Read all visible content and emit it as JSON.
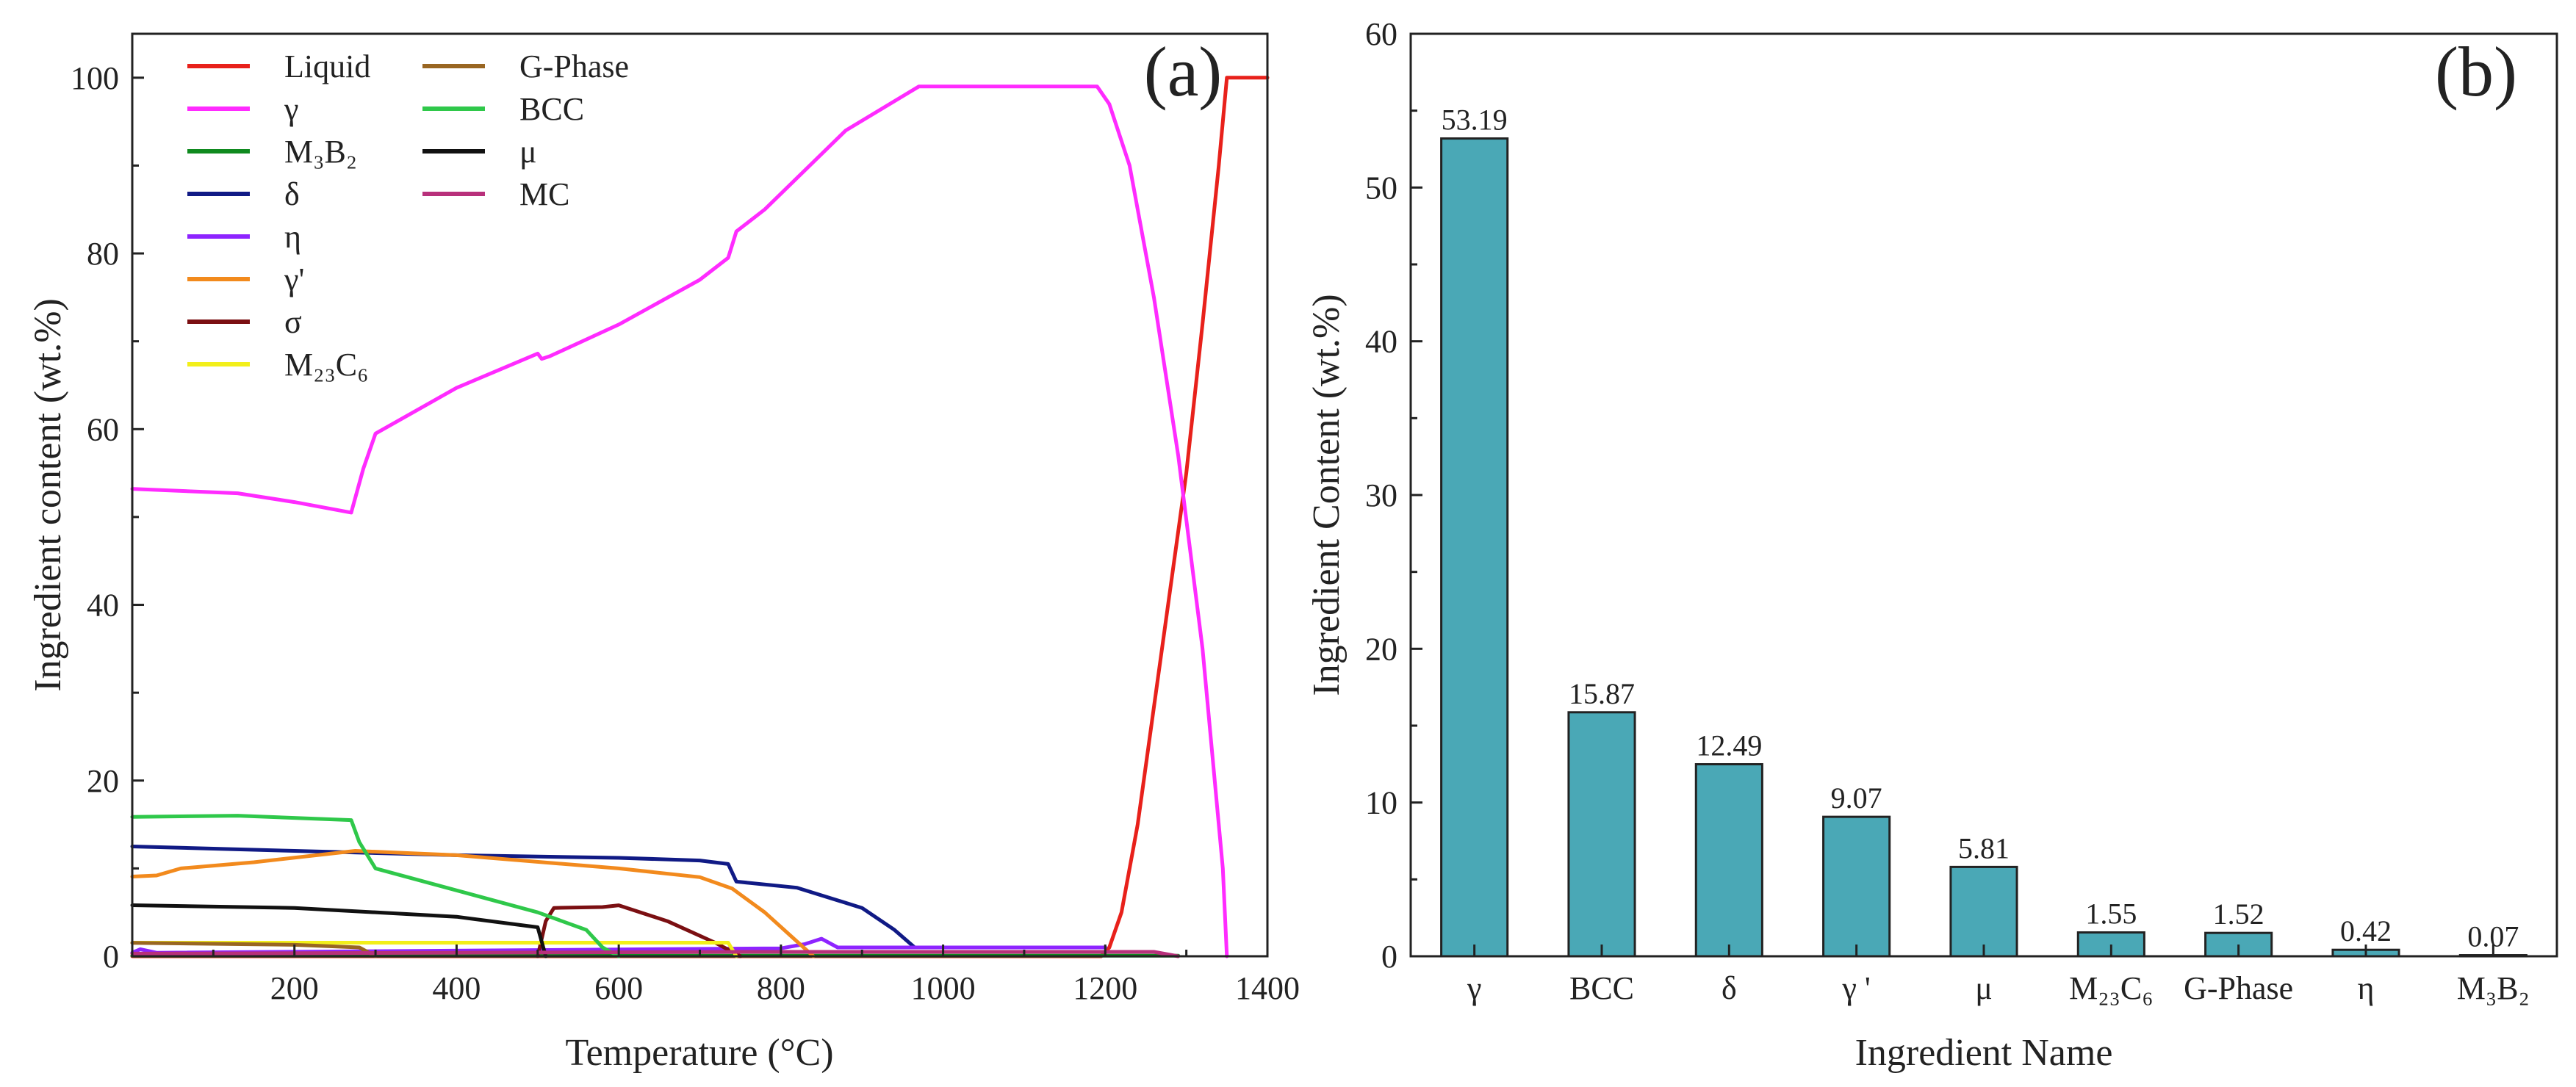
{
  "chart_data": [
    {
      "type": "line",
      "panel_label": "(a)",
      "title": "",
      "xlabel": "Temperature (°C)",
      "ylabel": "Ingredient content (wt.%)",
      "xlim": [
        0,
        1400
      ],
      "ylim": [
        0,
        105
      ],
      "xticks": [
        200,
        400,
        600,
        800,
        1000,
        1200,
        1400
      ],
      "yticks": [
        0,
        20,
        40,
        60,
        80,
        100
      ],
      "grid": false,
      "legend_position": "top-left",
      "series": [
        {
          "name": "Liquid",
          "color": "#e8211b",
          "x": [
            0,
            1195,
            1205,
            1220,
            1240,
            1270,
            1300,
            1320,
            1340,
            1350,
            1400
          ],
          "y": [
            0,
            0,
            1,
            5,
            15,
            35,
            55,
            72,
            90,
            100,
            100
          ]
        },
        {
          "name": "γ",
          "color": "#ff2bff",
          "x": [
            0,
            130,
            200,
            270,
            285,
            300,
            400,
            500,
            505,
            515,
            600,
            700,
            735,
            745,
            780,
            880,
            970,
            1190,
            1205,
            1230,
            1260,
            1290,
            1320,
            1345,
            1350
          ],
          "y": [
            53.2,
            52.7,
            51.7,
            50.5,
            55.5,
            59.5,
            64.7,
            68.6,
            68.0,
            68.3,
            71.9,
            77.0,
            79.5,
            82.5,
            85.0,
            94.0,
            99.0,
            99.0,
            97.0,
            90.0,
            75.0,
            57.0,
            35.0,
            10.0,
            0
          ]
        },
        {
          "name": "M₃B₂",
          "color": "#0f8a1f",
          "x": [
            0,
            1290
          ],
          "y": [
            0.07,
            0.07
          ]
        },
        {
          "name": "δ",
          "color": "#101a85",
          "x": [
            0,
            200,
            400,
            600,
            700,
            735,
            745,
            820,
            900,
            940,
            965,
            1200
          ],
          "y": [
            12.5,
            12.0,
            11.5,
            11.2,
            10.9,
            10.5,
            8.5,
            7.8,
            5.5,
            3.0,
            1.0,
            1.0
          ]
        },
        {
          "name": "η",
          "color": "#8e24ff",
          "x": [
            0,
            10,
            30,
            800,
            830,
            850,
            870,
            1200
          ],
          "y": [
            0.42,
            0.8,
            0.4,
            0.9,
            1.4,
            2.0,
            1.0,
            1.0
          ]
        },
        {
          "name": "γ'",
          "color": "#f28a1d",
          "x": [
            0,
            30,
            60,
            150,
            275,
            400,
            600,
            700,
            740,
            780,
            810,
            840
          ],
          "y": [
            9.07,
            9.2,
            10.0,
            10.7,
            12.0,
            11.5,
            10.0,
            9.0,
            7.7,
            5.0,
            2.5,
            0
          ]
        },
        {
          "name": "σ",
          "color": "#7b0f12",
          "x": [
            500,
            510,
            520,
            580,
            600,
            660,
            720,
            750
          ],
          "y": [
            0,
            4.0,
            5.5,
            5.6,
            5.8,
            4.0,
            1.5,
            0
          ]
        },
        {
          "name": "M₂₃C₆",
          "color": "#f2ef1a",
          "x": [
            0,
            735,
            745
          ],
          "y": [
            1.55,
            1.55,
            0
          ]
        },
        {
          "name": "G-Phase",
          "color": "#996622",
          "x": [
            0,
            200,
            280,
            300
          ],
          "y": [
            1.52,
            1.3,
            1.0,
            0
          ]
        },
        {
          "name": "BCC",
          "color": "#2fc84a",
          "x": [
            0,
            130,
            270,
            280,
            300,
            400,
            500,
            560,
            580,
            600
          ],
          "y": [
            15.87,
            16.0,
            15.5,
            13.0,
            10.0,
            7.5,
            5.0,
            3.0,
            1.0,
            0
          ]
        },
        {
          "name": "μ",
          "color": "#111111",
          "x": [
            0,
            200,
            400,
            500,
            510
          ],
          "y": [
            5.81,
            5.5,
            4.5,
            3.3,
            0
          ]
        },
        {
          "name": "MC",
          "color": "#b8307b",
          "x": [
            0,
            760,
            1260,
            1290
          ],
          "y": [
            0.3,
            0.5,
            0.5,
            0
          ]
        }
      ]
    },
    {
      "type": "bar",
      "panel_label": "(b)",
      "title": "",
      "xlabel": "Ingredient Name",
      "ylabel": "Ingredient Content (wt.%)",
      "ylim": [
        0,
        60
      ],
      "yticks": [
        0,
        10,
        20,
        30,
        40,
        50,
        60
      ],
      "grid": false,
      "bar_color": "#4aa8b6",
      "categories": [
        "γ",
        "BCC",
        "δ",
        "γ '",
        "μ",
        "M₂₃C₆",
        "G-Phase",
        "η",
        "M₃B₂"
      ],
      "values": [
        53.19,
        15.87,
        12.49,
        9.07,
        5.81,
        1.55,
        1.52,
        0.42,
        0.07
      ],
      "data_labels": [
        "53.19",
        "15.87",
        "12.49",
        "9.07",
        "5.81",
        "1.55",
        "1.52",
        "0.42",
        "0.07"
      ]
    }
  ]
}
